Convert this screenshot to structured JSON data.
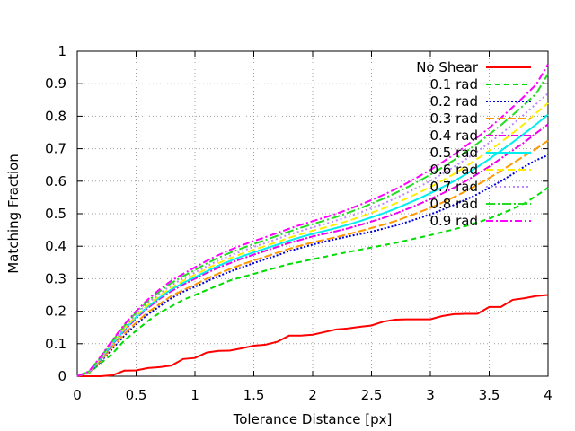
{
  "chart_data": {
    "type": "line",
    "xlabel": "Tolerance Distance [px]",
    "ylabel": "Matching Fraction",
    "xlim": [
      0,
      4
    ],
    "ylim": [
      0,
      1
    ],
    "xticks": [
      "0",
      "0.5",
      "1",
      "1.5",
      "2",
      "2.5",
      "3",
      "3.5",
      "4"
    ],
    "yticks": [
      "0",
      "0.1",
      "0.2",
      "0.3",
      "0.4",
      "0.5",
      "0.6",
      "0.7",
      "0.8",
      "0.9",
      "1"
    ],
    "grid": true,
    "legend_position": "top-right",
    "x": [
      0,
      0.1,
      0.2,
      0.3,
      0.4,
      0.5,
      0.6,
      0.7,
      0.8,
      0.9,
      1.0,
      1.1,
      1.2,
      1.3,
      1.4,
      1.5,
      1.6,
      1.7,
      1.8,
      1.9,
      2.0,
      2.1,
      2.2,
      2.3,
      2.4,
      2.5,
      2.6,
      2.7,
      2.8,
      2.9,
      3.0,
      3.1,
      3.2,
      3.3,
      3.4,
      3.5,
      3.6,
      3.7,
      3.8,
      3.9,
      4.0
    ],
    "series": [
      {
        "name": "No Shear",
        "color": "#ff0000",
        "dash": "solid",
        "values": [
          0,
          0,
          0,
          0.003,
          0.017,
          0.018,
          0.025,
          0.028,
          0.033,
          0.053,
          0.056,
          0.073,
          0.078,
          0.079,
          0.086,
          0.094,
          0.097,
          0.106,
          0.125,
          0.125,
          0.128,
          0.136,
          0.144,
          0.147,
          0.152,
          0.156,
          0.168,
          0.174,
          0.175,
          0.175,
          0.175,
          0.185,
          0.191,
          0.192,
          0.192,
          0.213,
          0.213,
          0.235,
          0.24,
          0.247,
          0.25
        ]
      },
      {
        "name": "0.1 rad",
        "color": "#00dd00",
        "dash": "6,4",
        "values": [
          0,
          0.01,
          0.04,
          0.07,
          0.11,
          0.14,
          0.17,
          0.195,
          0.215,
          0.235,
          0.25,
          0.265,
          0.28,
          0.295,
          0.305,
          0.315,
          0.325,
          0.335,
          0.345,
          0.352,
          0.36,
          0.367,
          0.375,
          0.382,
          0.389,
          0.396,
          0.403,
          0.41,
          0.418,
          0.426,
          0.434,
          0.443,
          0.452,
          0.462,
          0.473,
          0.485,
          0.5,
          0.515,
          0.532,
          0.555,
          0.58
        ]
      },
      {
        "name": "0.2 rad",
        "color": "#0000dd",
        "dash": "2,2",
        "values": [
          0,
          0.012,
          0.045,
          0.085,
          0.125,
          0.16,
          0.19,
          0.215,
          0.24,
          0.26,
          0.275,
          0.292,
          0.308,
          0.322,
          0.335,
          0.348,
          0.36,
          0.372,
          0.385,
          0.395,
          0.405,
          0.414,
          0.422,
          0.43,
          0.437,
          0.445,
          0.454,
          0.463,
          0.474,
          0.486,
          0.498,
          0.512,
          0.527,
          0.543,
          0.56,
          0.58,
          0.6,
          0.622,
          0.645,
          0.665,
          0.68
        ]
      },
      {
        "name": "0.3 rad",
        "color": "#ff9900",
        "dash": "9,3",
        "values": [
          0,
          0.012,
          0.048,
          0.09,
          0.13,
          0.165,
          0.197,
          0.222,
          0.247,
          0.265,
          0.282,
          0.3,
          0.316,
          0.33,
          0.344,
          0.356,
          0.368,
          0.38,
          0.392,
          0.402,
          0.412,
          0.42,
          0.428,
          0.437,
          0.446,
          0.456,
          0.466,
          0.477,
          0.49,
          0.504,
          0.518,
          0.534,
          0.551,
          0.569,
          0.589,
          0.61,
          0.632,
          0.655,
          0.678,
          0.7,
          0.725
        ]
      },
      {
        "name": "0.4 rad",
        "color": "#ee00ee",
        "dash": "8,2,2,2",
        "values": [
          0,
          0.013,
          0.052,
          0.098,
          0.14,
          0.178,
          0.21,
          0.238,
          0.262,
          0.282,
          0.3,
          0.318,
          0.334,
          0.348,
          0.362,
          0.374,
          0.386,
          0.398,
          0.41,
          0.42,
          0.43,
          0.438,
          0.446,
          0.455,
          0.465,
          0.476,
          0.487,
          0.5,
          0.514,
          0.529,
          0.545,
          0.562,
          0.58,
          0.6,
          0.622,
          0.645,
          0.67,
          0.695,
          0.72,
          0.748,
          0.775
        ]
      },
      {
        "name": "0.5 rad",
        "color": "#00eeee",
        "dash": "solid",
        "values": [
          0,
          0.013,
          0.054,
          0.1,
          0.143,
          0.182,
          0.214,
          0.242,
          0.267,
          0.287,
          0.305,
          0.323,
          0.34,
          0.355,
          0.369,
          0.381,
          0.393,
          0.405,
          0.417,
          0.428,
          0.438,
          0.447,
          0.456,
          0.466,
          0.477,
          0.489,
          0.501,
          0.515,
          0.53,
          0.546,
          0.563,
          0.581,
          0.6,
          0.621,
          0.644,
          0.668,
          0.694,
          0.72,
          0.747,
          0.775,
          0.805
        ]
      },
      {
        "name": "0.6 rad",
        "color": "#ffee00",
        "dash": "8,4",
        "values": [
          0,
          0.014,
          0.056,
          0.103,
          0.147,
          0.186,
          0.219,
          0.248,
          0.273,
          0.294,
          0.312,
          0.331,
          0.348,
          0.363,
          0.377,
          0.389,
          0.401,
          0.413,
          0.426,
          0.437,
          0.448,
          0.457,
          0.467,
          0.478,
          0.49,
          0.503,
          0.516,
          0.531,
          0.547,
          0.564,
          0.582,
          0.602,
          0.622,
          0.645,
          0.669,
          0.694,
          0.72,
          0.748,
          0.777,
          0.81,
          0.84
        ]
      },
      {
        "name": "0.7 rad",
        "color": "#bb88ff",
        "dash": "2,3",
        "values": [
          0,
          0.014,
          0.057,
          0.106,
          0.151,
          0.191,
          0.225,
          0.254,
          0.28,
          0.301,
          0.319,
          0.338,
          0.356,
          0.371,
          0.385,
          0.398,
          0.41,
          0.423,
          0.436,
          0.447,
          0.458,
          0.468,
          0.479,
          0.491,
          0.503,
          0.517,
          0.531,
          0.547,
          0.564,
          0.582,
          0.601,
          0.622,
          0.644,
          0.667,
          0.692,
          0.718,
          0.745,
          0.775,
          0.806,
          0.838,
          0.87
        ]
      },
      {
        "name": "0.8 rad",
        "color": "#22dd22",
        "dash": "10,3,2,3",
        "values": [
          0,
          0.015,
          0.059,
          0.109,
          0.155,
          0.196,
          0.231,
          0.261,
          0.287,
          0.308,
          0.327,
          0.347,
          0.365,
          0.38,
          0.394,
          0.407,
          0.419,
          0.432,
          0.445,
          0.457,
          0.468,
          0.479,
          0.49,
          0.503,
          0.516,
          0.531,
          0.546,
          0.563,
          0.581,
          0.6,
          0.62,
          0.642,
          0.665,
          0.69,
          0.716,
          0.744,
          0.773,
          0.804,
          0.836,
          0.87,
          0.93
        ]
      },
      {
        "name": "0.9 rad",
        "color": "#ff00ff",
        "dash": "8,3,2,3",
        "values": [
          0,
          0.015,
          0.061,
          0.112,
          0.159,
          0.2,
          0.236,
          0.267,
          0.294,
          0.315,
          0.335,
          0.355,
          0.373,
          0.389,
          0.403,
          0.416,
          0.428,
          0.441,
          0.454,
          0.466,
          0.477,
          0.488,
          0.5,
          0.513,
          0.527,
          0.542,
          0.558,
          0.575,
          0.594,
          0.614,
          0.635,
          0.658,
          0.682,
          0.708,
          0.735,
          0.764,
          0.795,
          0.828,
          0.862,
          0.898,
          0.96
        ]
      }
    ]
  }
}
